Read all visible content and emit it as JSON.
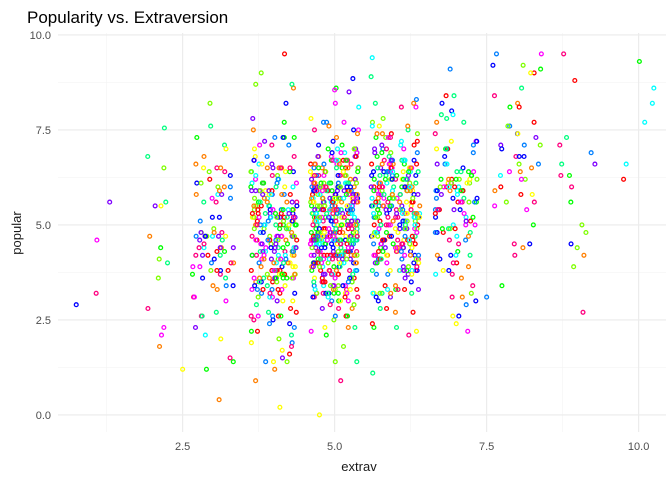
{
  "chart_data": {
    "type": "scatter",
    "title": "Popularity vs. Extraversion",
    "xlabel": "extrav",
    "ylabel": "popular",
    "xlim": [
      0.45,
      10.45
    ],
    "ylim": [
      -0.45,
      10.05
    ],
    "x_ticks": [
      2.5,
      5.0,
      7.5,
      10.0
    ],
    "x_tick_labels": [
      "2.5",
      "5.0",
      "7.5",
      "10.0"
    ],
    "y_ticks": [
      0.0,
      2.5,
      5.0,
      7.5,
      10.0
    ],
    "y_tick_labels": [
      "0.0",
      "2.5",
      "5.0",
      "7.5",
      "10.0"
    ],
    "grid": true,
    "legend": "none",
    "palette": [
      "#FF0000",
      "#FF7F00",
      "#FFFF00",
      "#7FFF00",
      "#00FF00",
      "#00FF7F",
      "#00FFFF",
      "#007FFF",
      "#0000FF",
      "#7F00FF",
      "#FF00FF",
      "#FF007F"
    ],
    "x_groups": [
      {
        "x": 1,
        "n": 2,
        "spread": 0.25,
        "mean": 4.2,
        "sd": 1.0,
        "extra": [
          [
            0.75,
            2.9
          ],
          [
            1.3,
            5.6
          ]
        ]
      },
      {
        "x": 2,
        "n": 14,
        "spread": 0.3,
        "mean": 4.8,
        "sd": 1.7,
        "extra": [
          [
            2.2,
            7.55
          ],
          [
            2.5,
            1.2
          ]
        ]
      },
      {
        "x": 3,
        "n": 85,
        "spread": 0.35,
        "mean": 4.6,
        "sd": 1.4,
        "extra": [
          [
            2.95,
            8.2
          ],
          [
            3.1,
            0.4
          ]
        ]
      },
      {
        "x": 4,
        "n": 280,
        "spread": 0.38,
        "mean": 4.7,
        "sd": 1.35,
        "extra": [
          [
            3.7,
            0.9
          ],
          [
            4.2,
            8.2
          ]
        ]
      },
      {
        "x": 5,
        "n": 490,
        "spread": 0.4,
        "mean": 5.0,
        "sd": 1.3,
        "extra": [
          [
            4.75,
            0.0
          ],
          [
            5.1,
            0.9
          ],
          [
            5.0,
            8.55
          ],
          [
            5.3,
            8.85
          ]
        ]
      },
      {
        "x": 6,
        "n": 310,
        "spread": 0.4,
        "mean": 5.3,
        "sd": 1.25,
        "extra": [
          [
            6.3,
            8.2
          ],
          [
            5.6,
            8.9
          ]
        ]
      },
      {
        "x": 7,
        "n": 120,
        "spread": 0.35,
        "mean": 5.7,
        "sd": 1.3,
        "extra": [
          [
            6.9,
            9.1
          ],
          [
            7.0,
            2.4
          ]
        ]
      },
      {
        "x": 8,
        "n": 45,
        "spread": 0.4,
        "mean": 6.4,
        "sd": 1.4,
        "extra": [
          [
            8.4,
            9.5
          ],
          [
            8.1,
            9.2
          ],
          [
            7.5,
            3.1
          ]
        ]
      },
      {
        "x": 9,
        "n": 16,
        "spread": 0.35,
        "mean": 6.3,
        "sd": 1.6,
        "extra": [
          [
            8.95,
            8.8
          ],
          [
            9.1,
            4.2
          ]
        ]
      },
      {
        "x": 10,
        "n": 4,
        "spread": 0.25,
        "mean": 7.4,
        "sd": 1.0,
        "extra": [
          [
            10.25,
            8.6
          ],
          [
            10.1,
            7.7
          ]
        ]
      }
    ]
  }
}
